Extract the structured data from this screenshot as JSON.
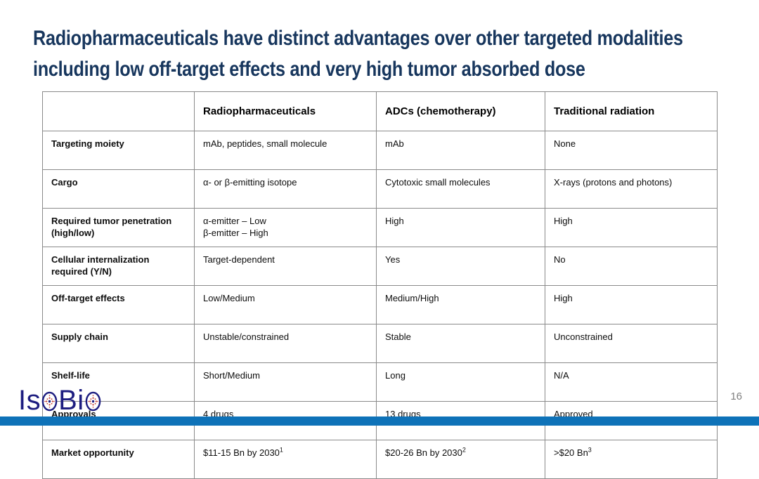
{
  "colors": {
    "title_navy": "#17365d",
    "accent_bar_blue": "#0e72b8",
    "logo_navy": "#1d1d80",
    "atom_dot_red": "#c0392b",
    "table_border_gray": "#8a8a8a",
    "page_number_gray": "#7f7f7f"
  },
  "title": {
    "line1": "Radiopharmaceuticals have distinct advantages over other targeted modalities",
    "line2": "including low off-target effects and very high tumor absorbed dose"
  },
  "table": {
    "columns": [
      "",
      "Radiopharmaceuticals",
      "ADCs (chemotherapy)",
      "Traditional radiation"
    ],
    "rows": [
      {
        "label": "Targeting moiety",
        "cells": [
          {
            "lines": [
              "mAb, peptides, small molecule"
            ]
          },
          {
            "lines": [
              "mAb"
            ]
          },
          {
            "lines": [
              "None"
            ]
          }
        ]
      },
      {
        "label": "Cargo",
        "cells": [
          {
            "lines": [
              "α- or β-emitting isotope"
            ]
          },
          {
            "lines": [
              "Cytotoxic small molecules"
            ]
          },
          {
            "lines": [
              "X-rays (protons and photons)"
            ]
          }
        ]
      },
      {
        "label": "Required tumor penetration (high/low)",
        "cells": [
          {
            "lines": [
              "α-emitter – Low",
              "β-emitter – High"
            ]
          },
          {
            "lines": [
              "High"
            ]
          },
          {
            "lines": [
              "High"
            ]
          }
        ]
      },
      {
        "label": "Cellular internalization required (Y/N)",
        "cells": [
          {
            "lines": [
              "Target-dependent"
            ]
          },
          {
            "lines": [
              "Yes"
            ]
          },
          {
            "lines": [
              "No"
            ]
          }
        ]
      },
      {
        "label": "Off-target effects",
        "cells": [
          {
            "lines": [
              "Low/Medium"
            ]
          },
          {
            "lines": [
              "Medium/High"
            ]
          },
          {
            "lines": [
              "High"
            ]
          }
        ]
      },
      {
        "label": "Supply chain",
        "cells": [
          {
            "lines": [
              "Unstable/constrained"
            ]
          },
          {
            "lines": [
              "Stable"
            ]
          },
          {
            "lines": [
              "Unconstrained"
            ]
          }
        ]
      },
      {
        "label": "Shelf-life",
        "cells": [
          {
            "lines": [
              "Short/Medium"
            ]
          },
          {
            "lines": [
              "Long"
            ]
          },
          {
            "lines": [
              "N/A"
            ]
          }
        ]
      },
      {
        "label": "Approvals",
        "cells": [
          {
            "lines": [
              "4 drugs"
            ]
          },
          {
            "lines": [
              "13 drugs"
            ]
          },
          {
            "lines": [
              "Approved"
            ]
          }
        ]
      },
      {
        "label": "Market opportunity",
        "cells": [
          {
            "lines": [
              "$11-15 Bn by 2030"
            ],
            "sup": "1"
          },
          {
            "lines": [
              "$20-26 Bn by 2030"
            ],
            "sup": "2"
          },
          {
            "lines": [
              ">$20 Bn"
            ],
            "sup": "3"
          }
        ]
      }
    ]
  },
  "footer": {
    "logo_full": "IsoBio",
    "logo_part1": "Is",
    "logo_part2": "Bi",
    "page_number": "16"
  }
}
